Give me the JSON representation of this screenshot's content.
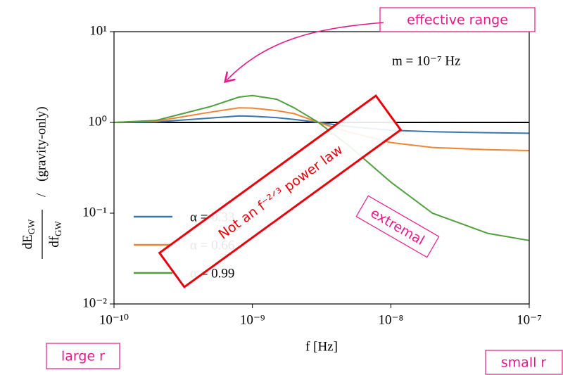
{
  "chart_data": {
    "type": "line",
    "x": [
      1e-10,
      2e-10,
      5e-10,
      8e-10,
      1e-09,
      1.5e-09,
      2e-09,
      3e-09,
      5e-09,
      1e-08,
      2e-08,
      5e-08,
      1e-07
    ],
    "series": [
      {
        "name": "α = 0.33",
        "color": "#3b75af",
        "values": [
          1.0,
          1.01,
          1.12,
          1.18,
          1.17,
          1.13,
          1.08,
          1.0,
          0.9,
          0.82,
          0.79,
          0.77,
          0.76
        ]
      },
      {
        "name": "α = 0.66",
        "color": "#ef8636",
        "values": [
          1.0,
          1.03,
          1.3,
          1.45,
          1.44,
          1.35,
          1.25,
          1.0,
          0.78,
          0.6,
          0.53,
          0.5,
          0.49
        ]
      },
      {
        "name": "α = 0.99",
        "color": "#519e3e",
        "values": [
          1.0,
          1.05,
          1.5,
          1.9,
          1.98,
          1.8,
          1.45,
          1.0,
          0.55,
          0.22,
          0.1,
          0.06,
          0.05
        ]
      }
    ],
    "reference_line": 1,
    "xlim": [
      1e-10,
      1e-07
    ],
    "ylim": [
      0.01,
      10
    ],
    "xscale": "log",
    "yscale": "log",
    "xticks": [
      {
        "value": 1e-10,
        "label": "10⁻¹⁰"
      },
      {
        "value": 1e-09,
        "label": "10⁻⁹"
      },
      {
        "value": 1e-08,
        "label": "10⁻⁸"
      },
      {
        "value": 1e-07,
        "label": "10⁻⁷"
      }
    ],
    "yticks": [
      {
        "value": 0.01,
        "label": "10⁻²"
      },
      {
        "value": 0.1,
        "label": "10⁻¹"
      },
      {
        "value": 1,
        "label": "10⁰"
      },
      {
        "value": 10,
        "label": "10¹"
      }
    ],
    "xlabel": "f [Hz]",
    "ylabel": {
      "numerator": "dE",
      "numerator_sub": "GW",
      "denominator": "df",
      "denominator_sub": "GW",
      "reference": "(gravity-only)"
    },
    "mass_label": "m = 10⁻⁷ Hz",
    "annotations": {
      "effective": "effective range",
      "extremal": "extremal",
      "stamp": "Not an f⁻²ᐟ³ power law",
      "large": "large r",
      "small": "small r"
    }
  }
}
